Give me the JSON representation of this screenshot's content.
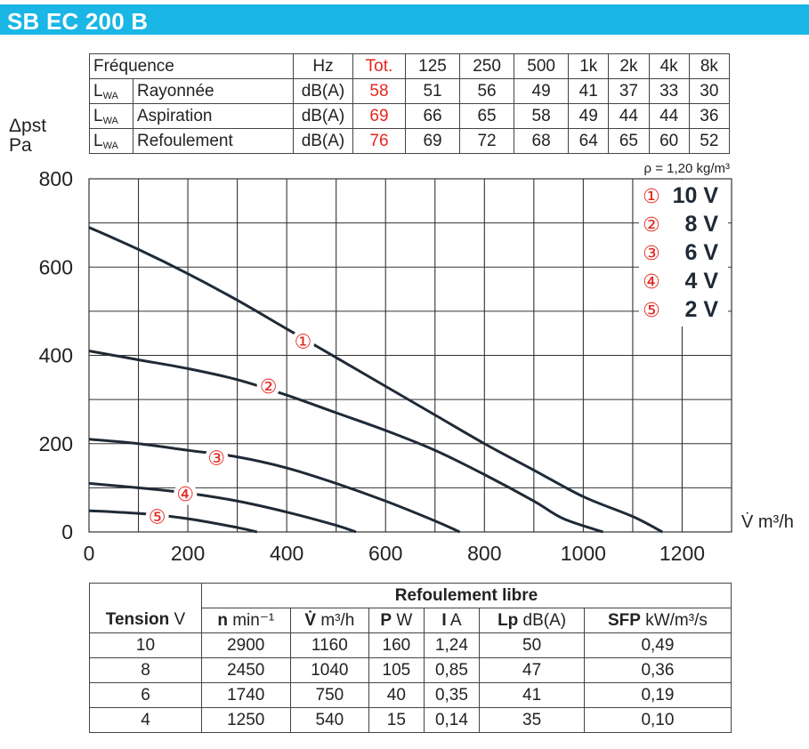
{
  "title": "SB EC 200 B",
  "noise_table": {
    "header": [
      "Fréquence",
      "Hz",
      "Tot.",
      "125",
      "250",
      "500",
      "1k",
      "2k",
      "4k",
      "8k"
    ],
    "rows": [
      {
        "label": "LWA",
        "name": "Rayonnée",
        "unit": "dB(A)",
        "tot": "58",
        "values": [
          "51",
          "56",
          "49",
          "41",
          "37",
          "33",
          "30"
        ]
      },
      {
        "label": "LWA",
        "name": "Aspiration",
        "unit": "dB(A)",
        "tot": "69",
        "values": [
          "66",
          "65",
          "58",
          "49",
          "44",
          "44",
          "36"
        ]
      },
      {
        "label": "LWA",
        "name": "Refoulement",
        "unit": "dB(A)",
        "tot": "76",
        "values": [
          "69",
          "72",
          "68",
          "64",
          "65",
          "60",
          "52"
        ]
      }
    ]
  },
  "chart_data": {
    "type": "line",
    "ylabel": "Δpst",
    "yunit": "Pa",
    "xlabel": "V̇ m³/h",
    "density": "ρ = 1,20 kg/m³",
    "xlim": [
      0,
      1300
    ],
    "ylim": [
      0,
      800
    ],
    "xticks": [
      0,
      200,
      400,
      600,
      800,
      1000,
      1200
    ],
    "yticks": [
      0,
      200,
      400,
      600,
      800
    ],
    "grid": true,
    "accent_color": "#e3271e",
    "line_color": "#1f2a36",
    "series": [
      {
        "name": "10 V",
        "marker": "①",
        "points": [
          [
            0,
            690
          ],
          [
            100,
            640
          ],
          [
            200,
            585
          ],
          [
            300,
            525
          ],
          [
            400,
            460
          ],
          [
            500,
            395
          ],
          [
            600,
            330
          ],
          [
            700,
            265
          ],
          [
            800,
            200
          ],
          [
            900,
            140
          ],
          [
            1000,
            80
          ],
          [
            1100,
            35
          ],
          [
            1160,
            0
          ]
        ],
        "label_at": [
          433,
          432
        ]
      },
      {
        "name": "8 V",
        "marker": "②",
        "points": [
          [
            0,
            410
          ],
          [
            100,
            390
          ],
          [
            200,
            370
          ],
          [
            300,
            345
          ],
          [
            400,
            310
          ],
          [
            500,
            270
          ],
          [
            600,
            230
          ],
          [
            700,
            185
          ],
          [
            800,
            130
          ],
          [
            900,
            70
          ],
          [
            960,
            30
          ],
          [
            1040,
            0
          ]
        ],
        "label_at": [
          363,
          330
        ]
      },
      {
        "name": "6 V",
        "marker": "③",
        "points": [
          [
            0,
            210
          ],
          [
            100,
            200
          ],
          [
            200,
            185
          ],
          [
            300,
            170
          ],
          [
            400,
            145
          ],
          [
            500,
            110
          ],
          [
            600,
            70
          ],
          [
            700,
            25
          ],
          [
            750,
            0
          ]
        ],
        "label_at": [
          258,
          168
        ]
      },
      {
        "name": "4 V",
        "marker": "④",
        "points": [
          [
            0,
            110
          ],
          [
            100,
            100
          ],
          [
            200,
            88
          ],
          [
            300,
            70
          ],
          [
            400,
            45
          ],
          [
            500,
            15
          ],
          [
            540,
            0
          ]
        ],
        "label_at": [
          195,
          87
        ]
      },
      {
        "name": "2 V",
        "marker": "⑤",
        "points": [
          [
            0,
            48
          ],
          [
            100,
            42
          ],
          [
            200,
            30
          ],
          [
            300,
            10
          ],
          [
            340,
            0
          ]
        ],
        "label_at": [
          138,
          35
        ]
      }
    ],
    "legend": [
      {
        "marker": "①",
        "label": "10 V"
      },
      {
        "marker": "②",
        "label": "8 V"
      },
      {
        "marker": "③",
        "label": "6 V"
      },
      {
        "marker": "④",
        "label": "4 V"
      },
      {
        "marker": "⑤",
        "label": "2 V"
      }
    ],
    "legend_position": "top-right"
  },
  "performance_table": {
    "group_header": "Refoulement libre",
    "headers": [
      {
        "bold": "Tension",
        "unit": " V"
      },
      {
        "bold": "n",
        "unit": " min⁻¹"
      },
      {
        "bold": "V̇",
        "unit": " m³/h"
      },
      {
        "bold": "P",
        "unit": " W"
      },
      {
        "bold": "I",
        "unit": " A"
      },
      {
        "bold": "Lp",
        "unit": " dB(A)"
      },
      {
        "bold": "SFP",
        "unit": " kW/m³/s"
      }
    ],
    "rows": [
      [
        "10",
        "2900",
        "1160",
        "160",
        "1,24",
        "50",
        "0,49"
      ],
      [
        "8",
        "2450",
        "1040",
        "105",
        "0,85",
        "47",
        "0,36"
      ],
      [
        "6",
        "1740",
        "750",
        "40",
        "0,35",
        "41",
        "0,19"
      ],
      [
        "4",
        "1250",
        "540",
        "15",
        "0,14",
        "35",
        "0,10"
      ]
    ]
  }
}
